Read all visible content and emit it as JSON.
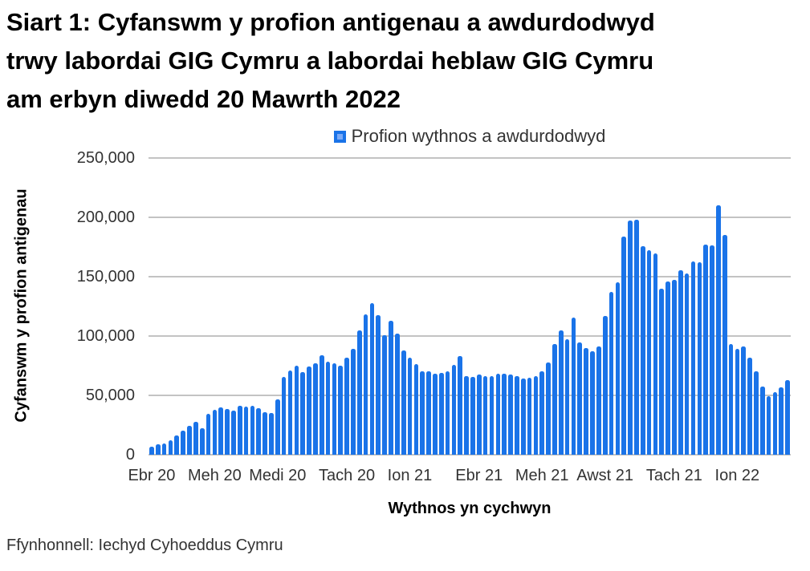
{
  "title_lines": [
    "Siart 1: Cyfanswm y profion antigenau a awdurdodwyd",
    "trwy labordai GIG Cymru a labordai heblaw GIG Cymru",
    "am erbyn diwedd 20 Mawrth 2022"
  ],
  "legend": {
    "label": "Profion wythnos a awdurdodwyd",
    "marker_color": "#1a73e8",
    "marker_inner_color": "#7baaf7"
  },
  "footer": {
    "source": "Ffynhonnell: Iechyd Cyhoeddus Cymru"
  },
  "chart_data": {
    "type": "bar",
    "title": "Siart 1: Cyfanswm y profion antigenau a awdurdodwyd trwy labordai GIG Cymru a labordai heblaw GIG Cymru am erbyn diwedd 20 Mawrth 2022",
    "series_name": "Profion wythnos a awdurdodwyd",
    "xlabel": "Wythnos yn cychwyn",
    "ylabel": "Cyfanswm y profion antigenau",
    "ylim": [
      0,
      250000
    ],
    "grid": true,
    "grid_color": "#c3c3c3",
    "bar_color": "#1a73e8",
    "legend_position": "top-center",
    "y_ticks": [
      {
        "value": 0,
        "label": "0"
      },
      {
        "value": 50000,
        "label": "50,000"
      },
      {
        "value": 100000,
        "label": "100,000"
      },
      {
        "value": 150000,
        "label": "150,000"
      },
      {
        "value": 200000,
        "label": "200,000"
      },
      {
        "value": 250000,
        "label": "250,000"
      }
    ],
    "x_ticks": [
      {
        "index": 0,
        "label": "Ebr 20"
      },
      {
        "index": 10,
        "label": "Meh 20"
      },
      {
        "index": 20,
        "label": "Medi 20"
      },
      {
        "index": 31,
        "label": "Tach 20"
      },
      {
        "index": 41,
        "label": "Ion 21"
      },
      {
        "index": 52,
        "label": "Ebr 21"
      },
      {
        "index": 62,
        "label": "Meh 21"
      },
      {
        "index": 72,
        "label": "Awst 21"
      },
      {
        "index": 83,
        "label": "Tach 21"
      },
      {
        "index": 93,
        "label": "Ion 22"
      }
    ],
    "values": [
      7000,
      8500,
      9500,
      12500,
      16500,
      20000,
      24500,
      27500,
      22500,
      34500,
      38000,
      40000,
      38500,
      37000,
      41000,
      40500,
      41000,
      39500,
      35500,
      35000,
      46500,
      65500,
      71000,
      75000,
      69500,
      74000,
      77000,
      84000,
      78500,
      77000,
      75000,
      81500,
      89000,
      104500,
      118500,
      127500,
      117500,
      100500,
      113000,
      102000,
      88000,
      81500,
      76500,
      70500,
      70000,
      68000,
      69000,
      70500,
      75500,
      83000,
      66000,
      65500,
      67500,
      66500,
      66000,
      68000,
      68000,
      67500,
      66000,
      64500,
      65000,
      66000,
      70500,
      77500,
      93000,
      105000,
      97000,
      115500,
      94500,
      90000,
      87000,
      91500,
      117000,
      137500,
      145500,
      184000,
      197000,
      198000,
      175500,
      172000,
      169500,
      140000,
      146000,
      147500,
      155500,
      153000,
      163000,
      162000,
      177000,
      176500,
      210000,
      185000,
      93000,
      89500,
      91500,
      81500,
      70000,
      57500,
      49000,
      53000,
      56500,
      63000
    ]
  }
}
